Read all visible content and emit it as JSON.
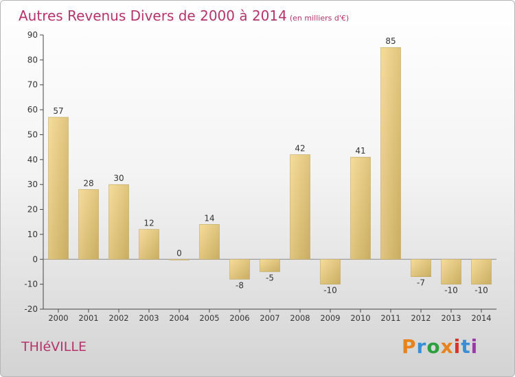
{
  "header": {
    "title": "Autres Revenus Divers de 2000 à 2014",
    "unit": "(en milliers d'€)"
  },
  "footer": {
    "city": "THIéVILLE",
    "logo_text": "Proxiti",
    "logo_colors": [
      "#e8821e",
      "#3a8ed6",
      "#2e9e3e",
      "#e8821e",
      "#d8322a",
      "#3a8ed6",
      "#9a3aa8"
    ]
  },
  "colors": {
    "bar_light": "#f6dc9a",
    "bar_dark": "#c9ad62",
    "text": "#333333",
    "accent": "#b5336a"
  },
  "chart_data": {
    "type": "bar",
    "title": "Autres Revenus Divers de 2000 à 2014",
    "xlabel": "",
    "ylabel": "",
    "categories": [
      "2000",
      "2001",
      "2002",
      "2003",
      "2004",
      "2005",
      "2006",
      "2007",
      "2008",
      "2009",
      "2010",
      "2011",
      "2012",
      "2013",
      "2014"
    ],
    "values": [
      57,
      28,
      30,
      12,
      0,
      14,
      -8,
      -5,
      42,
      -10,
      41,
      85,
      -7,
      -10,
      -10
    ],
    "ylim": [
      -20,
      90
    ],
    "yticks": [
      -20,
      -10,
      0,
      10,
      20,
      30,
      40,
      50,
      60,
      70,
      80,
      90
    ],
    "grid": false,
    "data_labels": true
  }
}
